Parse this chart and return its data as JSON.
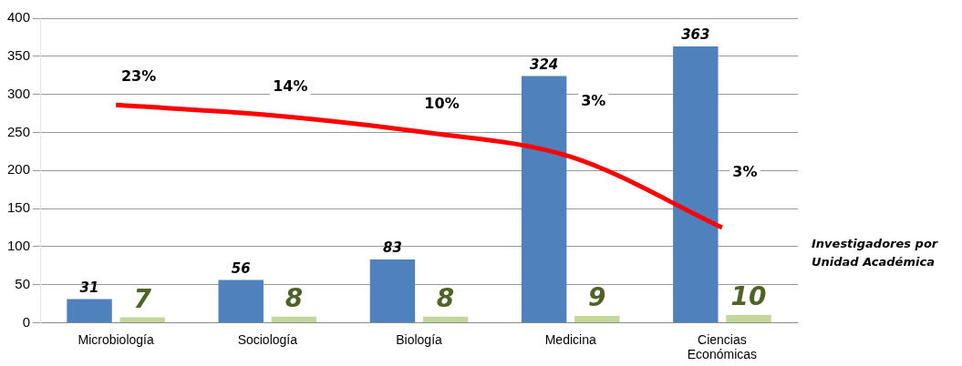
{
  "chart_data": {
    "type": "bar",
    "categories": [
      "Microbiología",
      "Sociología",
      "Biología",
      "Medicina",
      "Ciencias Económicas"
    ],
    "series": [
      {
        "color": "#4f81bd",
        "values": [
          31,
          56,
          83,
          324,
          363
        ],
        "value_labels": [
          "31",
          "56",
          "83",
          "324",
          "363"
        ]
      },
      {
        "color": "#c3d69b",
        "values": [
          7,
          8,
          8,
          9,
          10
        ],
        "value_labels": [
          "7",
          "8",
          "8",
          "9",
          "10"
        ]
      },
      {
        "type": "line",
        "color": "#ff0000",
        "values": [
          286,
          273,
          251,
          218,
          125
        ]
      }
    ],
    "ylim": [
      0,
      400
    ],
    "yticks": [
      0,
      50,
      100,
      150,
      200,
      250,
      300,
      350,
      400
    ],
    "grid": "y",
    "legend": false,
    "marker": "none",
    "annotations": [
      "Investigadores por Unidad Académica",
      "23%",
      "14%",
      "10%",
      "3%",
      "3%"
    ]
  }
}
